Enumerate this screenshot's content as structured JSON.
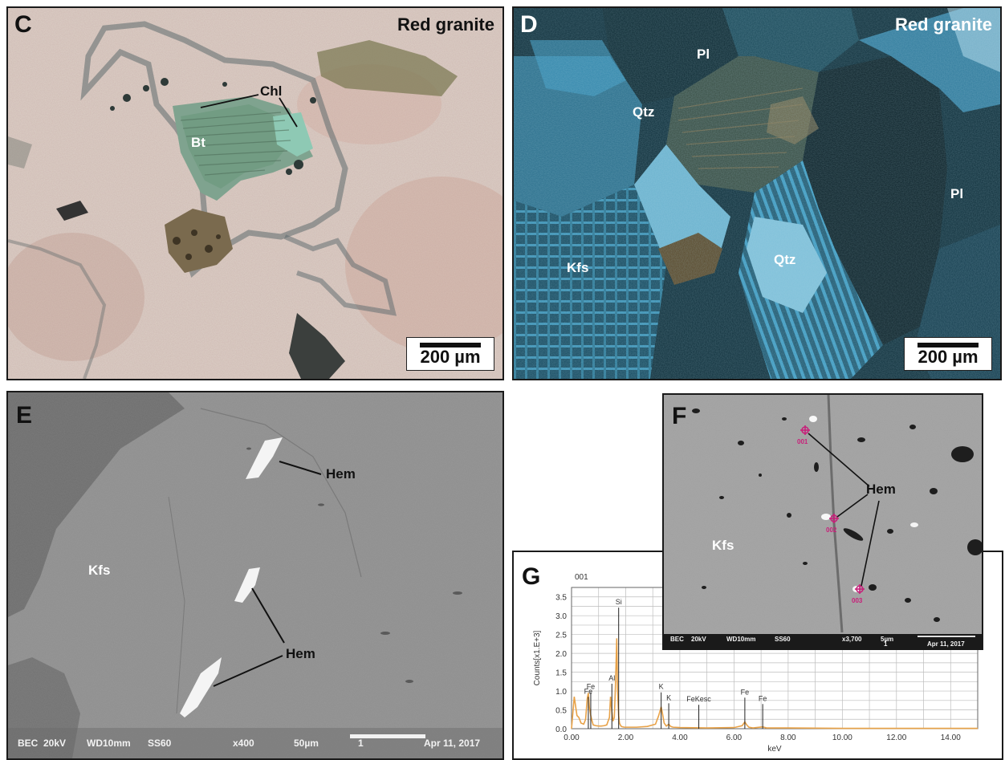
{
  "panel_c": {
    "letter": "C",
    "title": "Red granite",
    "labels": {
      "chl": "Chl",
      "bt": "Bt"
    },
    "scale": "200 µm"
  },
  "panel_d": {
    "letter": "D",
    "title": "Red granite",
    "labels": {
      "pl_top": "Pl",
      "pl_right": "Pl",
      "qtz_top": "Qtz",
      "qtz_mid": "Qtz",
      "kfs": "Kfs"
    },
    "scale": "200 µm"
  },
  "panel_e": {
    "letter": "E",
    "labels": {
      "hem_top": "Hem",
      "hem_bottom": "Hem",
      "kfs": "Kfs"
    },
    "footer": {
      "mode": "BEC",
      "kv": "20kV",
      "wd": "WD10mm",
      "ss": "SS60",
      "mag": "x400",
      "scale": "50µm",
      "idx": "1",
      "date": "Apr 11, 2017"
    }
  },
  "panel_f": {
    "letter": "F",
    "labels": {
      "hem": "Hem",
      "kfs": "Kfs"
    },
    "points": [
      "001",
      "002",
      "003"
    ],
    "footer": {
      "mode": "BEC",
      "kv": "20kV",
      "wd": "WD10mm",
      "ss": "SS60",
      "mag": "x3,700",
      "scale": "5µm",
      "idx": "1",
      "date": "Apr 11, 2017"
    }
  },
  "panel_g": {
    "letter": "G",
    "spectrum_id": "001"
  },
  "colors": {
    "spectrum": "#e8a248",
    "frame": "#1a1a1a"
  },
  "chart_data": {
    "type": "line",
    "title": "001",
    "xlabel": "keV",
    "ylabel": "Counts[x1.E+3]",
    "xlim": [
      0,
      15
    ],
    "ylim": [
      0,
      3.75
    ],
    "xticks": [
      "0.00",
      "2.00",
      "4.00",
      "6.00",
      "8.00",
      "10.00",
      "12.00",
      "14.00"
    ],
    "yticks": [
      "0.0",
      "0.5",
      "1.0",
      "1.5",
      "2.0",
      "2.5",
      "3.0",
      "3.5"
    ],
    "series": [
      {
        "x": [
          0,
          0.1,
          0.2,
          0.27,
          0.35,
          0.45,
          0.52,
          0.58,
          0.62,
          0.66,
          0.71,
          0.76,
          0.8,
          0.9,
          1.0,
          1.1,
          1.2,
          1.3,
          1.4,
          1.44,
          1.49,
          1.53,
          1.58,
          1.62,
          1.67,
          1.7,
          1.74,
          1.77,
          1.8,
          1.84,
          1.88,
          1.95,
          2.1,
          2.4,
          2.8,
          3.1,
          3.22,
          3.31,
          3.36,
          3.42,
          3.5,
          3.59,
          3.66,
          3.75,
          4.0,
          5.0,
          6.0,
          6.3,
          6.4,
          6.47,
          6.55,
          6.7,
          7.06,
          7.2,
          8.0,
          10.0,
          12.0,
          15.0
        ],
        "y": [
          0.0,
          0.85,
          0.35,
          0.3,
          0.15,
          0.12,
          0.25,
          0.8,
          0.95,
          0.55,
          0.35,
          0.2,
          0.1,
          0.08,
          0.07,
          0.07,
          0.08,
          0.1,
          0.3,
          0.85,
          0.45,
          0.2,
          0.3,
          1.1,
          2.4,
          1.0,
          0.35,
          0.15,
          0.1,
          0.06,
          0.05,
          0.04,
          0.04,
          0.04,
          0.06,
          0.12,
          0.35,
          0.58,
          0.4,
          0.15,
          0.07,
          0.12,
          0.06,
          0.04,
          0.03,
          0.02,
          0.03,
          0.08,
          0.18,
          0.1,
          0.04,
          0.02,
          0.05,
          0.02,
          0.02,
          0.01,
          0.01,
          0.01
        ]
      }
    ],
    "peak_labels": [
      {
        "name": "Fe",
        "x": 0.71,
        "y": 1.05
      },
      {
        "name": "Fe",
        "x": 0.62,
        "y": 0.93
      },
      {
        "name": "Al",
        "x": 1.49,
        "y": 1.28
      },
      {
        "name": "Si",
        "x": 1.74,
        "y": 3.3
      },
      {
        "name": "K",
        "x": 3.31,
        "y": 1.05
      },
      {
        "name": "K",
        "x": 3.59,
        "y": 0.76
      },
      {
        "name": "FeKesc",
        "x": 4.7,
        "y": 0.72
      },
      {
        "name": "Fe",
        "x": 6.4,
        "y": 0.91
      },
      {
        "name": "Fe",
        "x": 7.06,
        "y": 0.74
      }
    ],
    "grid": true
  }
}
